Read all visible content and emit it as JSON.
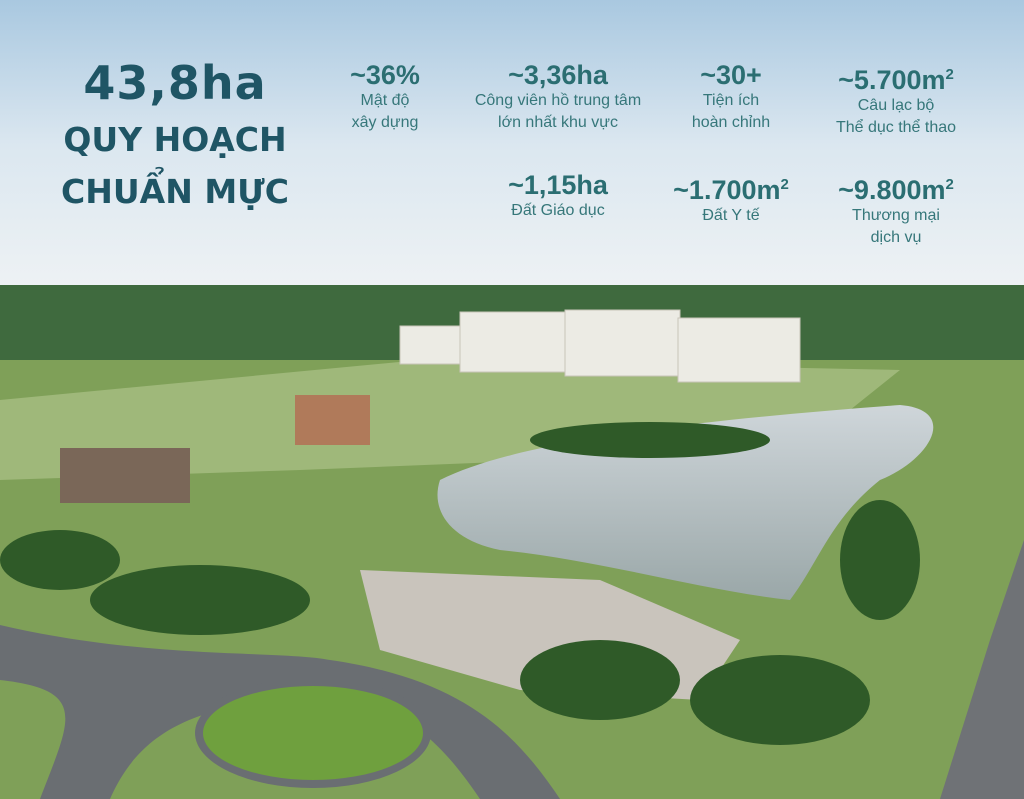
{
  "headline": {
    "area": "43,8ha",
    "line1": "QUY HOẠCH",
    "line2": "CHUẨN MỰC"
  },
  "stats": [
    {
      "value": "~36%",
      "label1": "Mật độ",
      "label2": "xây dựng"
    },
    {
      "value": "~3,36ha",
      "label1": "Công viên hồ trung tâm",
      "label2": "lớn nhất khu vực"
    },
    {
      "value": "~30+",
      "label1": "Tiện ích",
      "label2": "hoàn chỉnh"
    },
    {
      "value": "~5.700m",
      "unit_sup": "2",
      "label1": "Câu lạc bộ",
      "label2": "Thể dục thể thao"
    },
    {
      "value": "~1,15ha",
      "label1": "Đất Giáo dục",
      "label2": ""
    },
    {
      "value": "~1.700m",
      "unit_sup": "2",
      "label1": "Đất Y tế",
      "label2": ""
    },
    {
      "value": "~9.800m",
      "unit_sup": "2",
      "label1": "Thương mại",
      "label2": "dịch vụ"
    }
  ],
  "colors": {
    "headline": "#1f5565",
    "stats": "#2b6e72"
  }
}
